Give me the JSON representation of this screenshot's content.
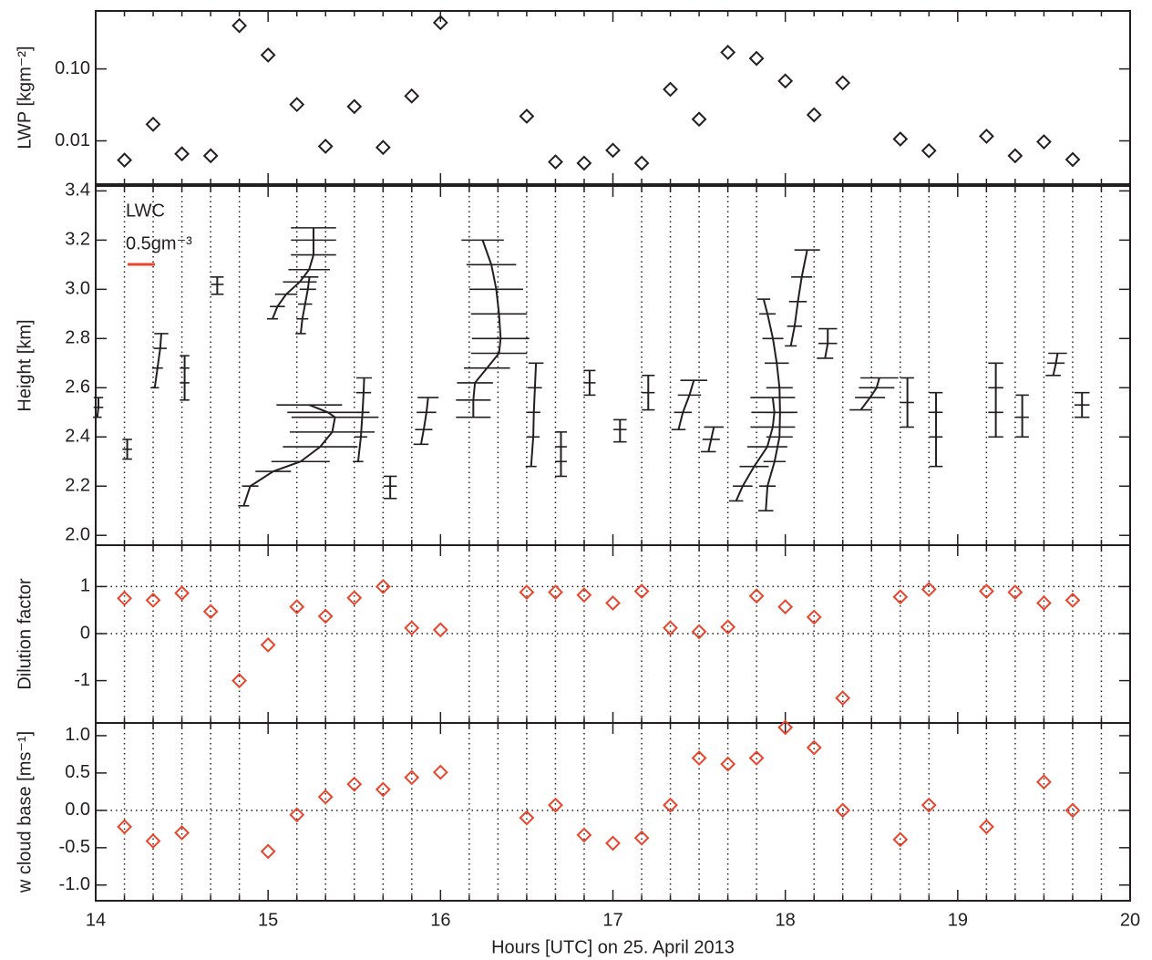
{
  "chart_data": [
    {
      "type": "scatter",
      "ylabel": "LWP [kgm⁻²]",
      "yscale": "log",
      "marker": "diamond",
      "color": "#231f20",
      "x": [
        14.167,
        14.333,
        14.5,
        14.667,
        14.833,
        15.0,
        15.167,
        15.333,
        15.5,
        15.667,
        15.833,
        16.0,
        16.5,
        16.667,
        16.833,
        17.0,
        17.167,
        17.333,
        17.5,
        17.667,
        17.833,
        18.0,
        18.167,
        18.333,
        18.667,
        18.833,
        19.167,
        19.333,
        19.5,
        19.667
      ],
      "values": [
        0.0054,
        0.017,
        0.0066,
        0.0062,
        0.4,
        0.156,
        0.032,
        0.0084,
        0.03,
        0.0081,
        0.042,
        0.44,
        0.022,
        0.0051,
        0.0049,
        0.0074,
        0.0049,
        0.052,
        0.02,
        0.17,
        0.14,
        0.068,
        0.023,
        0.064,
        0.0106,
        0.0073,
        0.0116,
        0.0062,
        0.0097,
        0.0055
      ],
      "ylim": [
        0.0025,
        0.64
      ],
      "yticks": [
        0.01,
        {
          "value": 0.1,
          "label": "0.10"
        }
      ],
      "xlim": [
        14,
        20
      ],
      "xticks": [
        14,
        15,
        16,
        17,
        18,
        19,
        20
      ],
      "xminorticks": [
        14.1667,
        14.3333,
        14.5,
        14.6667,
        14.8333,
        15.1667,
        15.3333,
        15.5,
        15.6667,
        15.8333,
        16.1667,
        16.3333,
        16.5,
        16.6667,
        16.8333,
        17.1667,
        17.3333,
        17.5,
        17.6667,
        17.8333,
        18.1667,
        18.3333,
        18.5,
        18.6667,
        18.8333,
        19.1667,
        19.3333,
        19.5,
        19.6667,
        19.8333
      ],
      "grid": false
    },
    {
      "type": "profile",
      "ylabel": "Height [km]",
      "label": "LWC",
      "color": "#231f20",
      "scale": {
        "value": 0.5,
        "label": "0.5gm⁻³",
        "color": "#e8452c"
      },
      "profiles": [
        {
          "x": 14.0,
          "heights": [
            2.48,
            2.52,
            2.56
          ],
          "lwc": [
            0.03,
            0.05,
            0.05
          ]
        },
        {
          "x": 14.167,
          "heights": [
            2.31,
            2.35,
            2.39
          ],
          "lwc": [
            0.05,
            0.05,
            0.05
          ]
        },
        {
          "x": 14.333,
          "heights": [
            2.6,
            2.68,
            2.76,
            2.82
          ],
          "lwc": [
            0.03,
            0.08,
            0.13,
            0.15
          ]
        },
        {
          "x": 14.5,
          "heights": [
            2.55,
            2.62,
            2.68,
            2.73
          ],
          "lwc": [
            0.05,
            0.05,
            0.05,
            0.05
          ]
        },
        {
          "x": 14.667,
          "heights": [
            2.98,
            3.02,
            3.05
          ],
          "lwc": [
            0.12,
            0.12,
            0.12
          ]
        },
        {
          "x": 14.833,
          "heights": [
            2.12,
            2.2,
            2.26,
            2.3,
            2.36,
            2.42,
            2.48,
            2.5,
            2.53
          ],
          "lwc": [
            0.08,
            0.2,
            0.62,
            1.12,
            1.48,
            1.7,
            1.75,
            1.62,
            1.28
          ]
        },
        {
          "x": 15.0,
          "heights": [
            2.88,
            2.93,
            2.98,
            3.03,
            3.08,
            3.14,
            3.2,
            3.25
          ],
          "lwc": [
            0.08,
            0.17,
            0.33,
            0.58,
            0.75,
            0.83,
            0.83,
            0.83
          ]
        },
        {
          "x": 15.167,
          "heights": [
            2.82,
            2.88,
            2.94,
            3.0,
            3.05
          ],
          "lwc": [
            0.07,
            0.1,
            0.15,
            0.2,
            0.23
          ]
        },
        {
          "x": 15.5,
          "heights": [
            2.3,
            2.4,
            2.5,
            2.58,
            2.64
          ],
          "lwc": [
            0.07,
            0.12,
            0.15,
            0.17,
            0.18
          ]
        },
        {
          "x": 15.667,
          "heights": [
            2.15,
            2.2,
            2.24
          ],
          "lwc": [
            0.13,
            0.13,
            0.13
          ]
        },
        {
          "x": 15.833,
          "heights": [
            2.37,
            2.43,
            2.5,
            2.56
          ],
          "lwc": [
            0.17,
            0.22,
            0.27,
            0.3
          ]
        },
        {
          "x": 16.0,
          "heights": [
            2.48,
            2.55,
            2.62,
            2.68,
            2.74,
            2.8,
            2.9,
            3.0,
            3.1,
            3.2
          ],
          "lwc": [
            0.6,
            0.6,
            0.63,
            0.85,
            1.07,
            1.1,
            1.07,
            1.02,
            0.93,
            0.77
          ]
        },
        {
          "x": 16.5,
          "heights": [
            2.28,
            2.4,
            2.5,
            2.6,
            2.7
          ],
          "lwc": [
            0.08,
            0.12,
            0.13,
            0.15,
            0.17
          ]
        },
        {
          "x": 16.667,
          "heights": [
            2.24,
            2.3,
            2.36,
            2.42
          ],
          "lwc": [
            0.1,
            0.1,
            0.1,
            0.1
          ]
        },
        {
          "x": 16.833,
          "heights": [
            2.57,
            2.62,
            2.67
          ],
          "lwc": [
            0.1,
            0.1,
            0.1
          ]
        },
        {
          "x": 17.0,
          "heights": [
            2.38,
            2.43,
            2.47
          ],
          "lwc": [
            0.13,
            0.13,
            0.13
          ]
        },
        {
          "x": 17.167,
          "heights": [
            2.51,
            2.58,
            2.65
          ],
          "lwc": [
            0.12,
            0.12,
            0.12
          ]
        },
        {
          "x": 17.333,
          "heights": [
            2.43,
            2.5,
            2.57,
            2.63
          ],
          "lwc": [
            0.15,
            0.23,
            0.35,
            0.43
          ]
        },
        {
          "x": 17.5,
          "heights": [
            2.34,
            2.39,
            2.44
          ],
          "lwc": [
            0.17,
            0.22,
            0.27
          ]
        },
        {
          "x": 17.667,
          "heights": [
            2.14,
            2.2,
            2.28,
            2.36,
            2.44,
            2.5,
            2.56
          ],
          "lwc": [
            0.15,
            0.27,
            0.48,
            0.72,
            0.82,
            0.85,
            0.82
          ]
        },
        {
          "x": 17.833,
          "heights": [
            2.1,
            2.2,
            2.3,
            2.4,
            2.5,
            2.6,
            2.7,
            2.8,
            2.9,
            2.96
          ],
          "lwc": [
            0.17,
            0.2,
            0.33,
            0.42,
            0.43,
            0.42,
            0.37,
            0.3,
            0.2,
            0.13
          ]
        },
        {
          "x": 18.0,
          "heights": [
            2.77,
            2.85,
            2.95,
            3.05,
            3.16
          ],
          "lwc": [
            0.1,
            0.17,
            0.23,
            0.3,
            0.4
          ]
        },
        {
          "x": 18.167,
          "heights": [
            2.72,
            2.78,
            2.84
          ],
          "lwc": [
            0.2,
            0.25,
            0.25
          ]
        },
        {
          "x": 18.333,
          "heights": [
            2.51,
            2.56,
            2.6,
            2.64
          ],
          "lwc": [
            0.33,
            0.5,
            0.62,
            0.67
          ]
        },
        {
          "x": 18.667,
          "heights": [
            2.44,
            2.54,
            2.64
          ],
          "lwc": [
            0.13,
            0.13,
            0.13
          ]
        },
        {
          "x": 18.833,
          "heights": [
            2.28,
            2.4,
            2.5,
            2.58
          ],
          "lwc": [
            0.13,
            0.13,
            0.13,
            0.13
          ]
        },
        {
          "x": 19.167,
          "heights": [
            2.4,
            2.5,
            2.6,
            2.7
          ],
          "lwc": [
            0.17,
            0.17,
            0.17,
            0.17
          ]
        },
        {
          "x": 19.333,
          "heights": [
            2.4,
            2.48,
            2.57
          ],
          "lwc": [
            0.13,
            0.13,
            0.13
          ]
        },
        {
          "x": 19.5,
          "heights": [
            2.65,
            2.7,
            2.74
          ],
          "lwc": [
            0.17,
            0.22,
            0.25
          ]
        },
        {
          "x": 19.667,
          "heights": [
            2.48,
            2.53,
            2.58
          ],
          "lwc": [
            0.17,
            0.17,
            0.17
          ]
        }
      ],
      "ylim": [
        1.96,
        3.42
      ],
      "yticks": [
        {
          "value": 2.0,
          "label": "2.0"
        },
        2.2,
        2.4,
        2.6,
        2.8,
        {
          "value": 3.0,
          "label": "3.0"
        },
        3.2,
        3.4
      ],
      "xlim": [
        14,
        20
      ],
      "xticks": [
        14,
        15,
        16,
        17,
        18,
        19,
        20
      ],
      "xminorticks": [
        14.1667,
        14.3333,
        14.5,
        14.6667,
        14.8333,
        15.1667,
        15.3333,
        15.5,
        15.6667,
        15.8333,
        16.1667,
        16.3333,
        16.5,
        16.6667,
        16.8333,
        17.1667,
        17.3333,
        17.5,
        17.6667,
        17.8333,
        18.1667,
        18.3333,
        18.5,
        18.6667,
        18.8333,
        19.1667,
        19.3333,
        19.5,
        19.6667,
        19.8333
      ],
      "grid": true
    },
    {
      "type": "scatter",
      "ylabel": "Dilution factor",
      "marker": "diamond",
      "color": "#e8452c",
      "x": [
        14.167,
        14.333,
        14.5,
        14.667,
        14.833,
        15.0,
        15.167,
        15.333,
        15.5,
        15.667,
        15.833,
        16.0,
        16.5,
        16.667,
        16.833,
        17.0,
        17.167,
        17.333,
        17.5,
        17.667,
        17.833,
        18.0,
        18.167,
        18.333,
        18.667,
        18.833,
        19.167,
        19.333,
        19.5,
        19.667
      ],
      "values": [
        0.75,
        0.71,
        0.86,
        0.47,
        -1.0,
        -0.24,
        0.57,
        0.37,
        0.76,
        1.0,
        0.12,
        0.08,
        0.88,
        0.88,
        0.82,
        0.65,
        0.9,
        0.12,
        0.04,
        0.14,
        0.8,
        0.57,
        0.35,
        -1.37,
        0.78,
        0.94,
        0.9,
        0.88,
        0.65,
        0.71
      ],
      "ylim": [
        -1.9,
        1.88
      ],
      "yticks": [
        -1,
        0,
        1
      ],
      "reference_lines": [
        0,
        1
      ],
      "xlim": [
        14,
        20
      ],
      "xticks": [
        14,
        15,
        16,
        17,
        18,
        19,
        20
      ],
      "xminorticks": [
        14.1667,
        14.3333,
        14.5,
        14.6667,
        14.8333,
        15.1667,
        15.3333,
        15.5,
        15.6667,
        15.8333,
        16.1667,
        16.3333,
        16.5,
        16.6667,
        16.8333,
        17.1667,
        17.3333,
        17.5,
        17.6667,
        17.8333,
        18.1667,
        18.3333,
        18.5,
        18.6667,
        18.8333,
        19.1667,
        19.3333,
        19.5,
        19.6667,
        19.8333
      ],
      "grid": true
    },
    {
      "type": "scatter",
      "ylabel": "w cloud base [ms⁻¹]",
      "xlabel": "Hours [UTC] on 25. April 2013",
      "marker": "diamond",
      "color": "#e8452c",
      "x": [
        14.167,
        14.333,
        14.5,
        15.0,
        15.167,
        15.333,
        15.5,
        15.667,
        15.833,
        16.0,
        16.5,
        16.667,
        16.833,
        17.0,
        17.167,
        17.333,
        17.5,
        17.667,
        17.833,
        18.0,
        18.167,
        18.333,
        18.667,
        18.833,
        19.167,
        19.5,
        19.667
      ],
      "values": [
        -0.22,
        -0.41,
        -0.3,
        -0.55,
        -0.06,
        0.18,
        0.35,
        0.28,
        0.44,
        0.51,
        -0.1,
        0.07,
        -0.33,
        -0.44,
        -0.37,
        0.07,
        0.7,
        0.62,
        0.7,
        1.11,
        0.84,
        0.0,
        -0.39,
        0.07,
        -0.22,
        0.38,
        0.0
      ],
      "ylim": [
        -1.21,
        1.17
      ],
      "yticks": [
        {
          "value": -1.0,
          "label": "-1.0"
        },
        -0.5,
        {
          "value": 0.0,
          "label": "0.0"
        },
        0.5,
        {
          "value": 1.0,
          "label": "1.0"
        }
      ],
      "reference_lines": [
        0
      ],
      "xlim": [
        14,
        20
      ],
      "xticks": [
        14,
        15,
        16,
        17,
        18,
        19,
        20
      ],
      "xminorticks": [
        14.1667,
        14.3333,
        14.5,
        14.6667,
        14.8333,
        15.1667,
        15.3333,
        15.5,
        15.6667,
        15.8333,
        16.1667,
        16.3333,
        16.5,
        16.6667,
        16.8333,
        17.1667,
        17.3333,
        17.5,
        17.6667,
        17.8333,
        18.1667,
        18.3333,
        18.5,
        18.6667,
        18.8333,
        19.1667,
        19.3333,
        19.5,
        19.6667,
        19.8333
      ],
      "grid": true
    }
  ]
}
